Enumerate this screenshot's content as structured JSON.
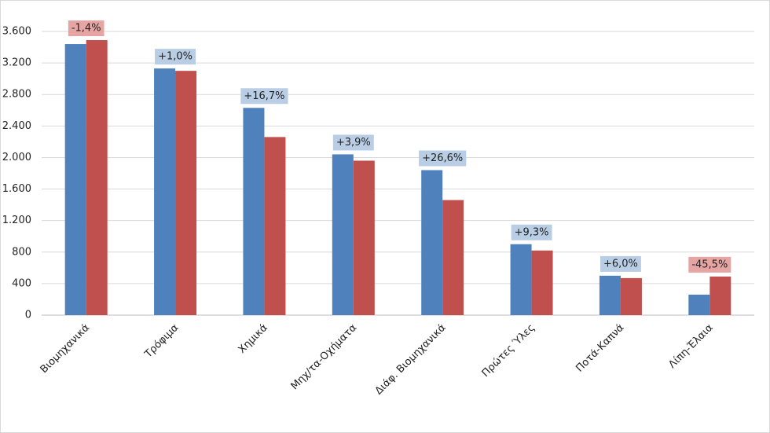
{
  "chart_data": {
    "type": "bar",
    "categories": [
      "Βιομηχανικά",
      "Τρόφιμα",
      "Χημικά",
      "Μηχ/τα-Οχήματα",
      "Διάφ. Βιομηχανικά",
      "Πρώτες Ύλες",
      "Ποτά-Καπνά",
      "Λίπη-Έλαια"
    ],
    "series": [
      {
        "color": "#4f81bd",
        "values": [
          3440,
          3130,
          2630,
          2040,
          1840,
          900,
          500,
          260
        ]
      },
      {
        "color": "#c0504d",
        "values": [
          3490,
          3100,
          2260,
          1960,
          1460,
          820,
          470,
          490
        ]
      }
    ],
    "annotations": [
      {
        "text": "-1,4%",
        "color": "#e6a5a3"
      },
      {
        "text": "+1,0%",
        "color": "#b9cde5"
      },
      {
        "text": "+16,7%",
        "color": "#b9cde5"
      },
      {
        "text": "+3,9%",
        "color": "#b9cde5"
      },
      {
        "text": "+26,6%",
        "color": "#b9cde5"
      },
      {
        "text": "+9,3%",
        "color": "#b9cde5"
      },
      {
        "text": "+6,0%",
        "color": "#b9cde5"
      },
      {
        "text": "-45,5%",
        "color": "#e6a5a3"
      }
    ],
    "ylim": [
      0,
      3600
    ],
    "yticks": [
      0,
      400,
      800,
      {
        "value": 1200,
        "label": "1.200"
      },
      {
        "value": 1600,
        "label": "1.600"
      },
      {
        "value": 2000,
        "label": "2.000"
      },
      {
        "value": 2400,
        "label": "2.400"
      },
      {
        "value": 2800,
        "label": "2.800"
      },
      {
        "value": 3200,
        "label": "3.200"
      },
      {
        "value": 3600,
        "label": "3.600"
      }
    ],
    "grid": true
  }
}
